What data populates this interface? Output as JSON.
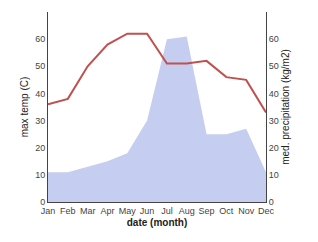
{
  "chart_data": {
    "type": "line",
    "categories": [
      "Jan",
      "Feb",
      "Mar",
      "Apr",
      "May",
      "Jun",
      "Jul",
      "Aug",
      "Sep",
      "Oct",
      "Nov",
      "Dec"
    ],
    "series": [
      {
        "type": "area",
        "color": "#c5cef0",
        "axis": "y2",
        "values": [
          11,
          11,
          13,
          15,
          18,
          30,
          60,
          61,
          25,
          25,
          27,
          11
        ]
      },
      {
        "type": "line",
        "color": "#c0504d",
        "values": [
          36,
          38,
          50,
          58,
          62,
          62,
          51,
          51,
          52,
          46,
          45,
          33
        ]
      }
    ],
    "xlabel": "date (month)",
    "ylabel": "max temp (C)",
    "y2label": "med. precipitation (kg/m2)",
    "ylim": [
      0,
      70
    ],
    "yticks": [
      0,
      10,
      20,
      30,
      40,
      50,
      60
    ],
    "y2lim": [
      0,
      70
    ],
    "y2ticks": [
      0,
      10,
      20,
      30,
      40,
      50,
      60
    ],
    "grid": false
  }
}
